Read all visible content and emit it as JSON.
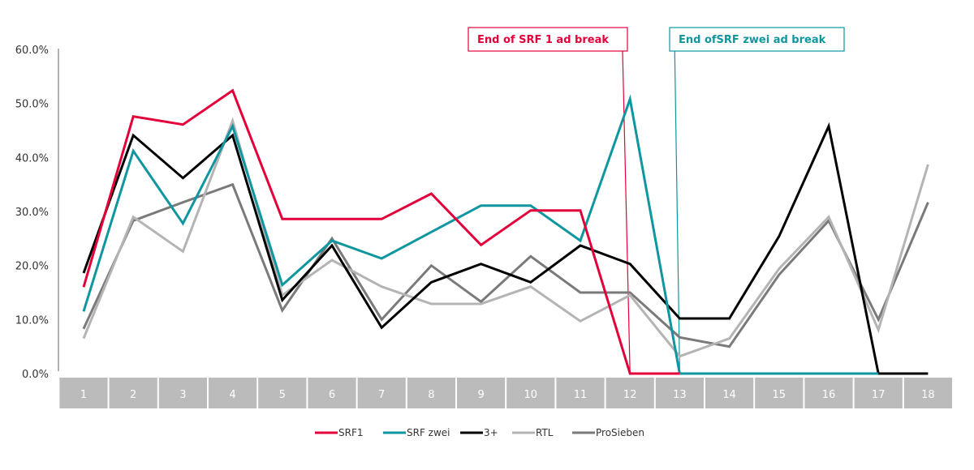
{
  "chart_data": {
    "type": "line",
    "title": "",
    "xlabel": "",
    "ylabel": "",
    "ylim": [
      0,
      60
    ],
    "yticks": [
      0,
      10,
      20,
      30,
      40,
      50,
      60
    ],
    "ytick_labels": [
      "0.0%",
      "10.0%",
      "20.0%",
      "30.0%",
      "40.0%",
      "50.0%",
      "60.0%"
    ],
    "grid": false,
    "categories": [
      "1",
      "2",
      "3",
      "4",
      "5",
      "6",
      "7",
      "8",
      "9",
      "10",
      "11",
      "12",
      "13",
      "14",
      "15",
      "16",
      "17",
      "18"
    ],
    "series": [
      {
        "name": "SRF1",
        "color": "#e3003a",
        "values": [
          16.0,
          47.6,
          46.1,
          52.4,
          28.6,
          28.6,
          28.6,
          33.3,
          23.8,
          30.2,
          30.2,
          0.0,
          0.0,
          null,
          null,
          null,
          null,
          null
        ]
      },
      {
        "name": "SRF zwei",
        "color": "#0f969f",
        "values": [
          11.5,
          41.2,
          27.8,
          45.8,
          16.4,
          24.6,
          21.3,
          26.2,
          31.1,
          31.1,
          24.6,
          50.8,
          0.0,
          0.0,
          0.0,
          0.0,
          0.0,
          null
        ]
      },
      {
        "name": "3+",
        "color": "#000000",
        "values": [
          18.6,
          44.1,
          36.2,
          44.1,
          13.6,
          23.7,
          8.5,
          16.9,
          20.3,
          16.9,
          23.7,
          20.3,
          10.2,
          10.2,
          25.4,
          45.8,
          0.0,
          0.0
        ]
      },
      {
        "name": "RTL",
        "color": "#b4b4b4",
        "values": [
          6.5,
          29.0,
          22.6,
          46.8,
          14.5,
          21.0,
          16.1,
          12.9,
          12.9,
          16.1,
          9.7,
          14.5,
          3.2,
          6.5,
          19.4,
          29.0,
          8.1,
          38.7
        ]
      },
      {
        "name": "ProSieben",
        "color": "#7a7a7a",
        "values": [
          8.3,
          28.3,
          31.7,
          35.0,
          11.7,
          25.0,
          10.0,
          20.0,
          13.3,
          21.7,
          15.0,
          15.0,
          6.7,
          5.0,
          18.3,
          28.3,
          10.0,
          31.7
        ]
      }
    ],
    "annotations": [
      {
        "text": "End of SRF 1 ad break",
        "color": "#e3003a",
        "line_from_category": 11.85,
        "line_to_category": 12.0
      },
      {
        "text": "End ofSRF zwei ad break",
        "color": "#0f969f",
        "line_from_category": 12.9,
        "line_to_category": 13.0
      }
    ],
    "legend": {
      "position": "bottom-center",
      "entries": [
        "SRF1",
        "SRF zwei",
        "3+",
        "RTL",
        "ProSieben"
      ]
    },
    "category_box_color": "#bbbbbb",
    "axis_color": "#999999"
  }
}
